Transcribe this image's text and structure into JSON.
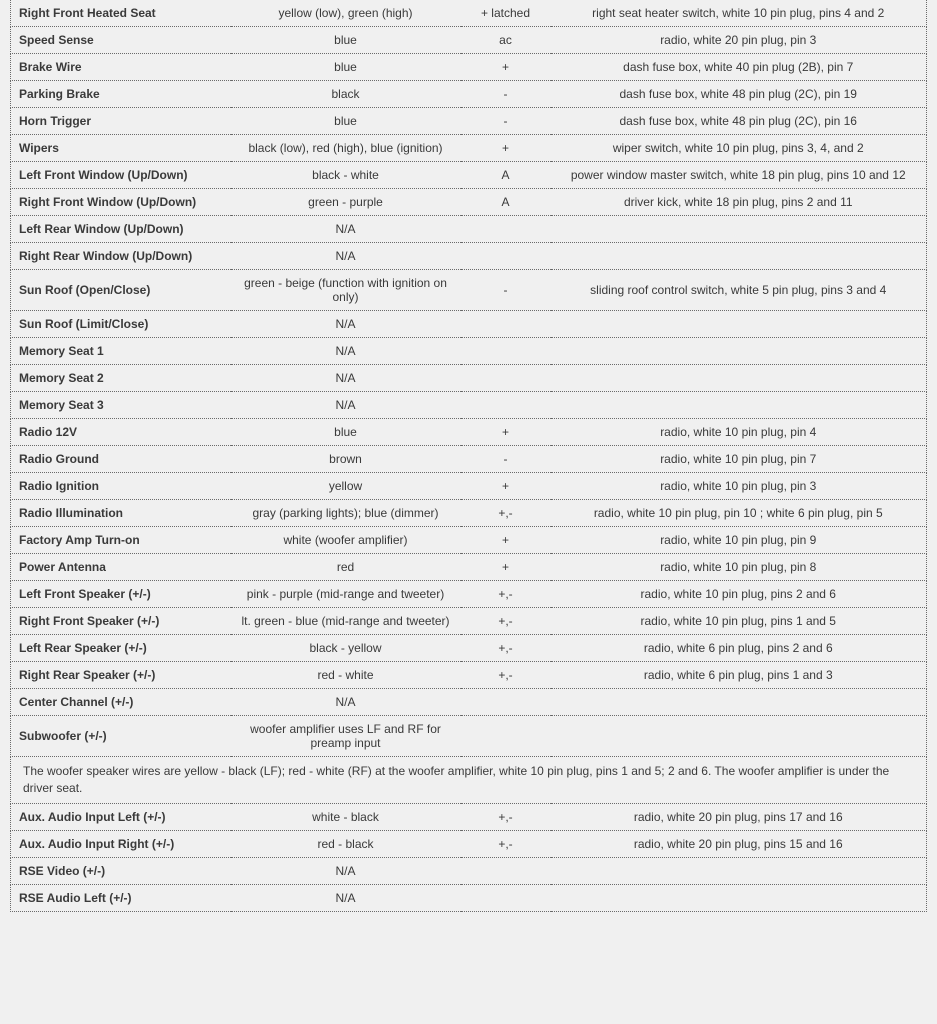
{
  "columns": {
    "label_width": 220,
    "color_width": 230,
    "polarity_width": 90
  },
  "styling": {
    "background_color": "#f0f0f0",
    "border_color": "#6a6a6a",
    "text_color": "#3a3a3a",
    "font_family": "Arial",
    "label_fontsize": 12,
    "cell_fontsize": 12,
    "border_style": "dotted"
  },
  "rows": [
    {
      "label": "Right Front Heated Seat",
      "color": "yellow (low), green (high)",
      "polarity": "+ latched",
      "location": "right seat heater switch, white 10 pin plug, pins 4 and 2"
    },
    {
      "label": "Speed Sense",
      "color": "blue",
      "polarity": "ac",
      "location": "radio, white 20 pin plug, pin 3"
    },
    {
      "label": "Brake Wire",
      "color": "blue",
      "polarity": "+",
      "location": "dash fuse box, white 40 pin plug (2B), pin 7"
    },
    {
      "label": "Parking Brake",
      "color": "black",
      "polarity": "-",
      "location": "dash fuse box, white 48 pin plug (2C), pin 19"
    },
    {
      "label": "Horn Trigger",
      "color": "blue",
      "polarity": "-",
      "location": "dash fuse box, white 48 pin plug (2C), pin 16"
    },
    {
      "label": "Wipers",
      "color": "black (low), red (high), blue (ignition)",
      "polarity": "+",
      "location": "wiper switch, white 10 pin plug, pins 3, 4, and 2"
    },
    {
      "label": "Left Front Window (Up/Down)",
      "color": "black - white",
      "polarity": "A",
      "location": "power window master switch, white 18 pin plug, pins 10 and 12"
    },
    {
      "label": "Right Front Window (Up/Down)",
      "color": "green - purple",
      "polarity": "A",
      "location": "driver kick, white 18 pin plug, pins 2 and 11"
    },
    {
      "label": "Left Rear Window (Up/Down)",
      "color": "N/A",
      "polarity": "",
      "location": ""
    },
    {
      "label": "Right Rear Window (Up/Down)",
      "color": "N/A",
      "polarity": "",
      "location": ""
    },
    {
      "label": "Sun Roof (Open/Close)",
      "color": "green - beige (function with ignition on only)",
      "polarity": "-",
      "location": "sliding roof control switch, white 5 pin plug, pins 3 and 4"
    },
    {
      "label": "Sun Roof (Limit/Close)",
      "color": "N/A",
      "polarity": "",
      "location": ""
    },
    {
      "label": "Memory Seat 1",
      "color": "N/A",
      "polarity": "",
      "location": ""
    },
    {
      "label": "Memory Seat 2",
      "color": "N/A",
      "polarity": "",
      "location": ""
    },
    {
      "label": "Memory Seat 3",
      "color": "N/A",
      "polarity": "",
      "location": ""
    },
    {
      "label": "Radio 12V",
      "color": "blue",
      "polarity": "+",
      "location": "radio, white 10 pin plug, pin 4"
    },
    {
      "label": "Radio Ground",
      "color": "brown",
      "polarity": "-",
      "location": "radio, white 10 pin plug, pin 7"
    },
    {
      "label": "Radio Ignition",
      "color": "yellow",
      "polarity": "+",
      "location": "radio, white 10 pin plug, pin 3"
    },
    {
      "label": "Radio Illumination",
      "color": "gray (parking lights); blue (dimmer)",
      "polarity": "+,-",
      "location": "radio, white 10 pin plug, pin 10 ; white 6 pin plug, pin 5"
    },
    {
      "label": "Factory Amp Turn-on",
      "color": "white (woofer amplifier)",
      "polarity": "+",
      "location": "radio, white 10 pin plug, pin 9"
    },
    {
      "label": "Power Antenna",
      "color": "red",
      "polarity": "+",
      "location": "radio, white 10 pin plug, pin 8"
    },
    {
      "label": "Left Front Speaker (+/-)",
      "color": "pink - purple (mid-range and tweeter)",
      "polarity": "+,-",
      "location": "radio, white 10 pin plug, pins 2 and 6"
    },
    {
      "label": "Right Front Speaker (+/-)",
      "color": "lt. green - blue (mid-range and tweeter)",
      "polarity": "+,-",
      "location": "radio, white 10 pin plug, pins 1 and 5"
    },
    {
      "label": "Left Rear Speaker (+/-)",
      "color": "black - yellow",
      "polarity": "+,-",
      "location": "radio, white 6 pin plug, pins 2 and 6"
    },
    {
      "label": "Right Rear Speaker (+/-)",
      "color": "red - white",
      "polarity": "+,-",
      "location": "radio, white 6 pin plug, pins 1 and 3"
    },
    {
      "label": "Center Channel (+/-)",
      "color": "N/A",
      "polarity": "",
      "location": ""
    },
    {
      "label": "Subwoofer (+/-)",
      "color": "woofer amplifier uses LF and RF for preamp input",
      "polarity": "",
      "location": ""
    },
    {
      "note": "The woofer speaker wires are yellow - black (LF); red - white (RF) at the woofer amplifier, white 10 pin plug, pins 1 and 5; 2 and 6. The woofer amplifier is under the driver seat."
    },
    {
      "label": "Aux. Audio Input Left (+/-)",
      "color": "white - black",
      "polarity": "+,-",
      "location": "radio, white 20 pin plug, pins 17 and 16"
    },
    {
      "label": "Aux. Audio Input Right (+/-)",
      "color": "red - black",
      "polarity": "+,-",
      "location": "radio, white 20 pin plug, pins 15 and 16"
    },
    {
      "label": "RSE Video (+/-)",
      "color": "N/A",
      "polarity": "",
      "location": ""
    },
    {
      "label": "RSE Audio Left (+/-)",
      "color": "N/A",
      "polarity": "",
      "location": ""
    }
  ]
}
